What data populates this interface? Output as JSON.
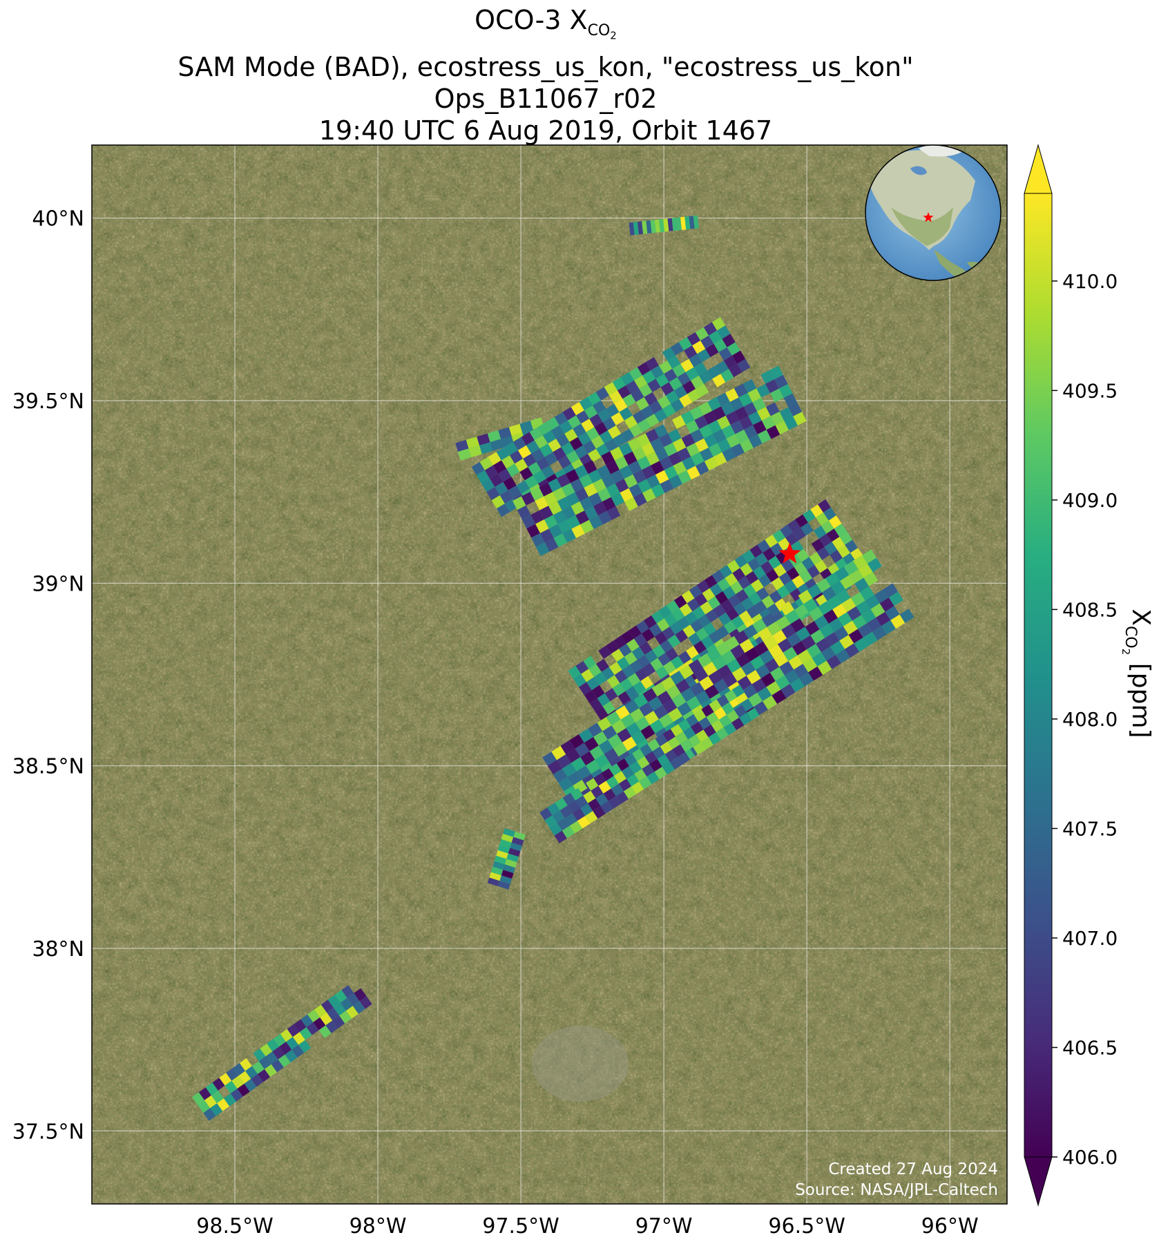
{
  "title": {
    "line1_prefix": "OCO-3 X",
    "line1_sub": "CO",
    "line1_sub2": "2",
    "line2": "SAM Mode (BAD), ecostress_us_kon, \"ecostress_us_kon\"",
    "line3": "Ops_B11067_r02",
    "line4": "19:40 UTC 6 Aug 2019, Orbit 1467"
  },
  "credit": {
    "created": "Created 27 Aug 2024",
    "source": "Source: NASA/JPL-Caltech"
  },
  "colorbar": {
    "label_prefix": "X",
    "label_sub": "CO",
    "label_sub2": "2",
    "label_suffix": " [ppm]",
    "min": 406.0,
    "max": 410.4,
    "extend": "both",
    "colormap": "viridis",
    "ticks": [
      "406.0",
      "406.5",
      "407.0",
      "407.5",
      "408.0",
      "408.5",
      "409.0",
      "409.5",
      "410.0"
    ]
  },
  "map": {
    "lon_range": [
      -99.0,
      -95.8
    ],
    "lat_range": [
      37.3,
      40.2
    ],
    "x_ticks": [
      {
        "lon": -98.5,
        "label": "98.5°W"
      },
      {
        "lon": -98.0,
        "label": "98°W"
      },
      {
        "lon": -97.5,
        "label": "97.5°W"
      },
      {
        "lon": -97.0,
        "label": "97°W"
      },
      {
        "lon": -96.5,
        "label": "96.5°W"
      },
      {
        "lon": -96.0,
        "label": "96°W"
      }
    ],
    "y_ticks": [
      {
        "lat": 40.0,
        "label": "40°N"
      },
      {
        "lat": 39.5,
        "label": "39.5°N"
      },
      {
        "lat": 39.0,
        "label": "39°N"
      },
      {
        "lat": 38.5,
        "label": "38.5°N"
      },
      {
        "lat": 38.0,
        "label": "38°N"
      },
      {
        "lat": 37.5,
        "label": "37.5°N"
      }
    ],
    "basemap": "satellite imagery",
    "target_marker": {
      "lon": -96.56,
      "lat": 39.08,
      "symbol": "red-star"
    },
    "inset_globe": {
      "center": "North America",
      "marker": "red-star"
    }
  },
  "swaths": [
    {
      "name": "swath-top-thin",
      "from": [
        -96.88,
        39.99
      ],
      "to": [
        -97.12,
        39.97
      ],
      "width_deg": 0.035,
      "along": 16,
      "across": 1
    },
    {
      "name": "swath-upper-left-thin",
      "from": [
        -97.72,
        39.36
      ],
      "to": [
        -97.42,
        39.43
      ],
      "width_deg": 0.05,
      "along": 8,
      "across": 2
    },
    {
      "name": "swath-upper-1",
      "from": [
        -97.62,
        39.25
      ],
      "to": [
        -96.75,
        39.66
      ],
      "width_deg": 0.16,
      "along": 30,
      "across": 6
    },
    {
      "name": "swath-upper-2",
      "from": [
        -97.48,
        39.15
      ],
      "to": [
        -96.55,
        39.52
      ],
      "width_deg": 0.17,
      "along": 30,
      "across": 6
    },
    {
      "name": "swath-mid-1",
      "from": [
        -97.25,
        38.66
      ],
      "to": [
        -96.35,
        39.13
      ],
      "width_deg": 0.24,
      "along": 34,
      "across": 9
    },
    {
      "name": "swath-mid-2",
      "from": [
        -97.35,
        38.43
      ],
      "to": [
        -96.2,
        39.0
      ],
      "width_deg": 0.22,
      "along": 36,
      "across": 8
    },
    {
      "name": "swath-mid-3",
      "from": [
        -97.4,
        38.33
      ],
      "to": [
        -96.7,
        38.68
      ],
      "width_deg": 0.1,
      "along": 26,
      "across": 4
    },
    {
      "name": "swath-lower-tail",
      "from": [
        -97.58,
        38.17
      ],
      "to": [
        -97.52,
        38.32
      ],
      "width_deg": 0.06,
      "along": 10,
      "across": 2
    },
    {
      "name": "swath-southwest",
      "from": [
        -98.62,
        37.56
      ],
      "to": [
        -98.05,
        37.88
      ],
      "width_deg": 0.08,
      "along": 24,
      "across": 3
    }
  ]
}
